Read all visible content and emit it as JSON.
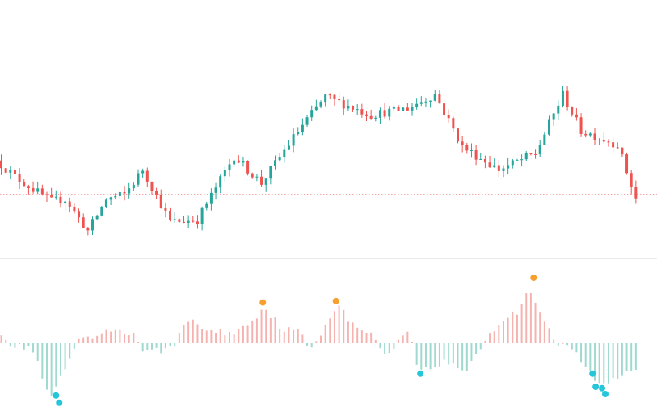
{
  "colors": {
    "up": "#26a69a",
    "down": "#ef5350",
    "hist_pos": "#f5b3b0",
    "hist_neg": "#9fd9cf",
    "marker_high": "#f7a030",
    "marker_low": "#26c6da",
    "price_line": "#ef5350",
    "divider": "#d9d9d9"
  },
  "chart_data": [
    {
      "type": "candlestick",
      "grid": false,
      "legend": "none",
      "ylim": [
        0,
        100
      ],
      "price_line": 28,
      "x_count": 140,
      "path": [
        [
          0,
          43
        ],
        [
          4,
          36
        ],
        [
          9,
          29
        ],
        [
          12,
          25
        ],
        [
          15,
          26
        ],
        [
          20,
          12
        ],
        [
          24,
          26
        ],
        [
          28,
          28
        ],
        [
          32,
          39
        ],
        [
          38,
          16
        ],
        [
          44,
          17
        ],
        [
          52,
          45
        ],
        [
          58,
          33
        ],
        [
          66,
          56
        ],
        [
          72,
          71
        ],
        [
          82,
          63
        ],
        [
          90,
          66
        ],
        [
          96,
          72
        ],
        [
          102,
          49
        ],
        [
          110,
          39
        ],
        [
          118,
          46
        ],
        [
          124,
          72
        ],
        [
          128,
          56
        ],
        [
          136,
          50
        ],
        [
          140,
          26
        ]
      ]
    },
    {
      "type": "histogram",
      "grid": false,
      "legend": "none",
      "ylim": [
        -100,
        100
      ],
      "path": [
        [
          0,
          20
        ],
        [
          3,
          -5
        ],
        [
          7,
          -5
        ],
        [
          9,
          -35
        ],
        [
          11,
          -80
        ],
        [
          15,
          -30
        ],
        [
          17,
          0
        ],
        [
          22,
          10
        ],
        [
          26,
          20
        ],
        [
          30,
          10
        ],
        [
          32,
          -15
        ],
        [
          38,
          -5
        ],
        [
          42,
          35
        ],
        [
          46,
          15
        ],
        [
          52,
          15
        ],
        [
          56,
          35
        ],
        [
          58,
          50
        ],
        [
          62,
          20
        ],
        [
          66,
          15
        ],
        [
          68,
          -10
        ],
        [
          72,
          30
        ],
        [
          74,
          55
        ],
        [
          78,
          20
        ],
        [
          82,
          15
        ],
        [
          84,
          -20
        ],
        [
          90,
          20
        ],
        [
          92,
          -40
        ],
        [
          98,
          -25
        ],
        [
          102,
          -40
        ],
        [
          106,
          0
        ],
        [
          110,
          30
        ],
        [
          114,
          45
        ],
        [
          116,
          80
        ],
        [
          118,
          50
        ],
        [
          122,
          0
        ],
        [
          126,
          -10
        ],
        [
          128,
          -30
        ],
        [
          132,
          -60
        ],
        [
          136,
          -45
        ],
        [
          140,
          -30
        ]
      ],
      "markers": [
        {
          "x": 12,
          "value": -72,
          "kind": "low"
        },
        {
          "x": 12.7,
          "value": -82,
          "kind": "low"
        },
        {
          "x": 57.3,
          "value": 56,
          "kind": "high"
        },
        {
          "x": 73.3,
          "value": 58,
          "kind": "high"
        },
        {
          "x": 91.8,
          "value": -42,
          "kind": "low"
        },
        {
          "x": 116.6,
          "value": 90,
          "kind": "high"
        },
        {
          "x": 129.5,
          "value": -42,
          "kind": "low"
        },
        {
          "x": 130.2,
          "value": -60,
          "kind": "low"
        },
        {
          "x": 131.6,
          "value": -62,
          "kind": "low"
        },
        {
          "x": 132.3,
          "value": -70,
          "kind": "low"
        }
      ]
    }
  ]
}
